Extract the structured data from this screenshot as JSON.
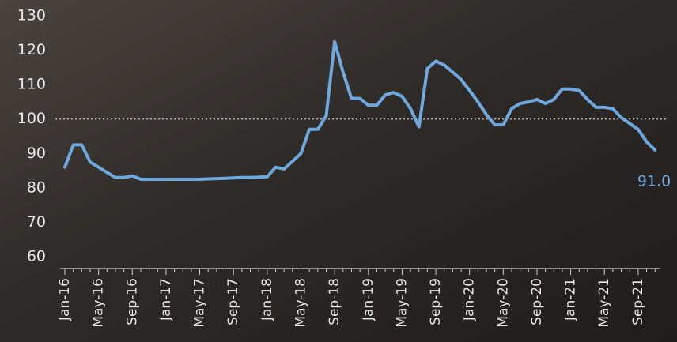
{
  "chart_data": {
    "type": "line",
    "categories": [
      "Jan-16",
      null,
      null,
      null,
      "May-16",
      null,
      null,
      null,
      "Sep-16",
      null,
      null,
      null,
      "Jan-17",
      null,
      null,
      null,
      "May-17",
      null,
      null,
      null,
      "Sep-17",
      null,
      null,
      null,
      "Jan-18",
      null,
      null,
      null,
      "May-18",
      null,
      null,
      null,
      "Sep-18",
      null,
      null,
      null,
      "Jan-19",
      null,
      null,
      null,
      "May-19",
      null,
      null,
      null,
      "Sep-19",
      null,
      null,
      null,
      "Jan-20",
      null,
      null,
      null,
      "May-20",
      null,
      null,
      null,
      "Sep-20",
      null,
      null,
      null,
      "Jan-21",
      null,
      null,
      null,
      "May-21",
      null,
      null,
      null,
      "Sep-21",
      null,
      null
    ],
    "values": [
      86,
      92.5,
      92.5,
      87.5,
      86,
      84.5,
      83,
      83,
      83.5,
      82.5,
      82.5,
      82.5,
      82.5,
      82.5,
      82.5,
      82.5,
      82.5,
      82.6,
      82.7,
      82.8,
      82.9,
      83,
      83,
      83.1,
      83.2,
      86,
      85.5,
      87.7,
      90,
      97,
      97,
      101,
      122.5,
      113.6,
      106,
      106,
      104,
      104,
      107,
      107.7,
      106.6,
      103,
      97.7,
      114.7,
      116.8,
      115.7,
      113.6,
      111.5,
      108.3,
      105,
      101.3,
      98.3,
      98.3,
      103,
      104.5,
      105,
      105.7,
      104.5,
      105.7,
      108.7,
      108.7,
      108.3,
      105.7,
      103.4,
      103.4,
      103,
      100.4,
      98.7,
      97,
      93.4,
      91
    ],
    "value_labels": [
      null,
      null,
      null,
      null,
      null,
      null,
      null,
      null,
      null,
      null,
      null,
      null,
      null,
      null,
      null,
      null,
      null,
      null,
      null,
      null,
      null,
      null,
      null,
      null,
      null,
      null,
      null,
      null,
      null,
      null,
      null,
      null,
      null,
      null,
      null,
      null,
      null,
      null,
      null,
      null,
      null,
      null,
      null,
      null,
      null,
      null,
      null,
      null,
      null,
      null,
      null,
      null,
      null,
      null,
      null,
      null,
      null,
      null,
      null,
      null,
      null,
      null,
      null,
      null,
      null,
      null,
      null,
      null,
      null,
      null,
      "91.0"
    ],
    "color": "#6fa8dc",
    "ylim": [
      60,
      130
    ],
    "yticks": [
      60,
      70,
      80,
      90,
      100,
      110,
      120,
      130
    ],
    "reference_line": 100
  }
}
